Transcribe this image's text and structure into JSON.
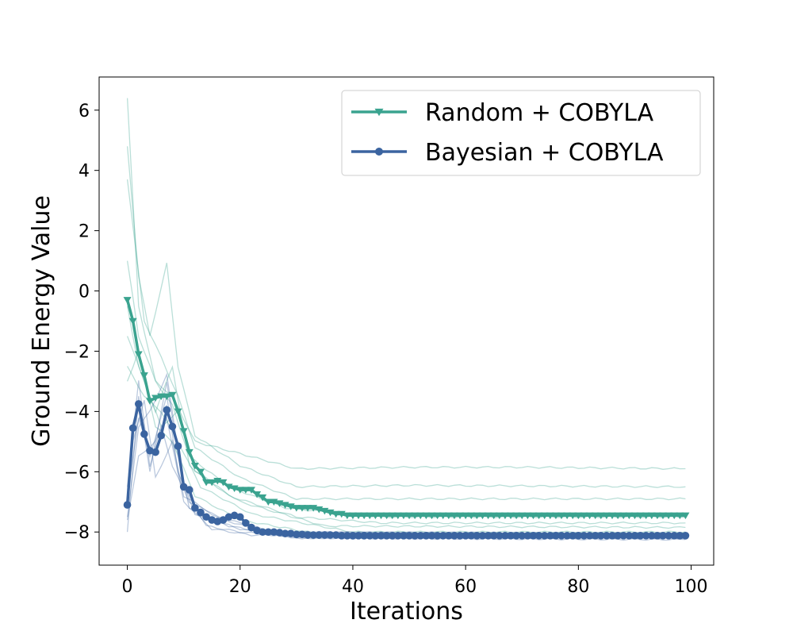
{
  "chart_data": {
    "type": "line",
    "title": "",
    "xlabel": "Iterations",
    "ylabel": "Ground Energy Value",
    "xlim": [
      -5,
      104
    ],
    "ylim": [
      -9.1,
      7.1
    ],
    "x_ticks": [
      0,
      20,
      40,
      60,
      80,
      100
    ],
    "y_ticks": [
      -8,
      -6,
      -4,
      -2,
      0,
      2,
      4,
      6
    ],
    "legend_position": "top-right",
    "grid": false,
    "series": [
      {
        "name": "Random + COBYLA",
        "color": "#3aa38f",
        "marker": "triangle-down",
        "x_start": 0,
        "values": [
          -0.3,
          -1.0,
          -2.1,
          -2.8,
          -3.65,
          -3.55,
          -3.5,
          -3.5,
          -3.45,
          -4.0,
          -4.65,
          -5.35,
          -5.8,
          -6.0,
          -6.35,
          -6.35,
          -6.3,
          -6.35,
          -6.5,
          -6.55,
          -6.6,
          -6.6,
          -6.6,
          -6.75,
          -6.85,
          -7.0,
          -7.0,
          -7.05,
          -7.1,
          -7.15,
          -7.2,
          -7.2,
          -7.2,
          -7.2,
          -7.25,
          -7.3,
          -7.35,
          -7.4,
          -7.4,
          -7.45,
          -7.45,
          -7.45,
          -7.45,
          -7.45,
          -7.45,
          -7.45,
          -7.45,
          -7.45,
          -7.45,
          -7.45,
          -7.45,
          -7.45,
          -7.45,
          -7.45,
          -7.45,
          -7.45,
          -7.45,
          -7.45,
          -7.45,
          -7.45,
          -7.45,
          -7.45,
          -7.45,
          -7.45,
          -7.45,
          -7.45,
          -7.45,
          -7.45,
          -7.45,
          -7.45,
          -7.45,
          -7.45,
          -7.45,
          -7.45,
          -7.45,
          -7.45,
          -7.45,
          -7.45,
          -7.45,
          -7.45,
          -7.45,
          -7.45,
          -7.45,
          -7.45,
          -7.45,
          -7.45,
          -7.45,
          -7.45,
          -7.45,
          -7.45,
          -7.45,
          -7.45,
          -7.45,
          -7.45,
          -7.45,
          -7.45,
          -7.45,
          -7.45,
          -7.45,
          -7.45
        ]
      },
      {
        "name": "Bayesian + COBYLA",
        "color": "#3b64a0",
        "marker": "circle",
        "x_start": 0,
        "values": [
          -7.1,
          -4.55,
          -3.75,
          -4.75,
          -5.3,
          -5.35,
          -4.8,
          -3.95,
          -4.5,
          -5.15,
          -6.5,
          -6.6,
          -7.2,
          -7.35,
          -7.5,
          -7.6,
          -7.65,
          -7.6,
          -7.5,
          -7.45,
          -7.5,
          -7.7,
          -7.85,
          -7.95,
          -8.0,
          -8.0,
          -8.0,
          -8.02,
          -8.05,
          -8.05,
          -8.08,
          -8.08,
          -8.1,
          -8.1,
          -8.1,
          -8.1,
          -8.1,
          -8.1,
          -8.12,
          -8.12,
          -8.12,
          -8.12,
          -8.12,
          -8.12,
          -8.12,
          -8.12,
          -8.12,
          -8.12,
          -8.12,
          -8.12,
          -8.12,
          -8.12,
          -8.12,
          -8.12,
          -8.12,
          -8.12,
          -8.12,
          -8.12,
          -8.12,
          -8.12,
          -8.12,
          -8.12,
          -8.12,
          -8.12,
          -8.12,
          -8.12,
          -8.12,
          -8.12,
          -8.12,
          -8.12,
          -8.12,
          -8.12,
          -8.12,
          -8.12,
          -8.12,
          -8.12,
          -8.12,
          -8.12,
          -8.12,
          -8.12,
          -8.12,
          -8.12,
          -8.12,
          -8.12,
          -8.12,
          -8.12,
          -8.12,
          -8.12,
          -8.12,
          -8.12,
          -8.12,
          -8.12,
          -8.12,
          -8.12,
          -8.12,
          -8.12,
          -8.12,
          -8.12,
          -8.12,
          -8.12
        ]
      }
    ],
    "individual_runs": [
      {
        "group": "Random + COBYLA",
        "color": "#3aa38f",
        "knots": [
          [
            0,
            6.4
          ],
          [
            2,
            -0.5
          ],
          [
            5,
            -3.0
          ],
          [
            8,
            -3.5
          ],
          [
            12,
            -5.0
          ],
          [
            20,
            -5.4
          ],
          [
            30,
            -5.9
          ],
          [
            50,
            -5.85
          ],
          [
            70,
            -5.85
          ],
          [
            99,
            -5.9
          ]
        ]
      },
      {
        "group": "Random + COBYLA",
        "color": "#3aa38f",
        "knots": [
          [
            0,
            4.8
          ],
          [
            2,
            0.5
          ],
          [
            4,
            -1.5
          ],
          [
            7,
            0.9
          ],
          [
            9,
            -2.5
          ],
          [
            12,
            -4.8
          ],
          [
            20,
            -5.8
          ],
          [
            30,
            -6.5
          ],
          [
            50,
            -6.45
          ],
          [
            99,
            -6.5
          ]
        ]
      },
      {
        "group": "Random + COBYLA",
        "color": "#3aa38f",
        "knots": [
          [
            0,
            3.7
          ],
          [
            3,
            -1.0
          ],
          [
            6,
            -2.2
          ],
          [
            9,
            -3.5
          ],
          [
            12,
            -5.2
          ],
          [
            20,
            -6.2
          ],
          [
            30,
            -6.9
          ],
          [
            60,
            -6.9
          ],
          [
            99,
            -6.9
          ]
        ]
      },
      {
        "group": "Random + COBYLA",
        "color": "#3aa38f",
        "knots": [
          [
            0,
            1.0
          ],
          [
            2,
            -1.5
          ],
          [
            5,
            -3.0
          ],
          [
            8,
            -3.8
          ],
          [
            11,
            -5.5
          ],
          [
            18,
            -6.5
          ],
          [
            28,
            -7.2
          ],
          [
            45,
            -7.5
          ],
          [
            99,
            -7.5
          ]
        ]
      },
      {
        "group": "Random + COBYLA",
        "color": "#3aa38f",
        "knots": [
          [
            0,
            -0.5
          ],
          [
            2,
            -2.5
          ],
          [
            5,
            -4.0
          ],
          [
            8,
            -2.5
          ],
          [
            11,
            -5.8
          ],
          [
            18,
            -6.8
          ],
          [
            30,
            -7.5
          ],
          [
            45,
            -7.7
          ],
          [
            99,
            -7.7
          ]
        ]
      },
      {
        "group": "Random + COBYLA",
        "color": "#3aa38f",
        "knots": [
          [
            0,
            -1.5
          ],
          [
            3,
            -3.0
          ],
          [
            6,
            -4.5
          ],
          [
            9,
            -4.0
          ],
          [
            12,
            -6.0
          ],
          [
            20,
            -7.0
          ],
          [
            35,
            -7.8
          ],
          [
            99,
            -7.85
          ]
        ]
      },
      {
        "group": "Random + COBYLA",
        "color": "#3aa38f",
        "knots": [
          [
            0,
            -2.5
          ],
          [
            3,
            -3.5
          ],
          [
            6,
            -4.0
          ],
          [
            9,
            -5.0
          ],
          [
            13,
            -6.5
          ],
          [
            22,
            -7.4
          ],
          [
            40,
            -8.0
          ],
          [
            99,
            -8.0
          ]
        ]
      },
      {
        "group": "Random + COBYLA",
        "color": "#3aa38f",
        "knots": [
          [
            0,
            -3.0
          ],
          [
            2,
            -2.0
          ],
          [
            5,
            -4.5
          ],
          [
            8,
            -5.0
          ],
          [
            12,
            -6.8
          ],
          [
            20,
            -7.6
          ],
          [
            35,
            -8.1
          ],
          [
            99,
            -8.1
          ]
        ]
      },
      {
        "group": "Bayesian + COBYLA",
        "color": "#3b64a0",
        "knots": [
          [
            0,
            -8.0
          ],
          [
            2,
            -3.5
          ],
          [
            4,
            -6.0
          ],
          [
            7,
            -3.0
          ],
          [
            9,
            -5.5
          ],
          [
            11,
            -7.2
          ],
          [
            18,
            -7.8
          ],
          [
            30,
            -8.2
          ],
          [
            99,
            -8.25
          ]
        ]
      },
      {
        "group": "Bayesian + COBYLA",
        "color": "#3b64a0",
        "knots": [
          [
            0,
            -7.5
          ],
          [
            2,
            -4.5
          ],
          [
            4,
            -4.0
          ],
          [
            7,
            -2.8
          ],
          [
            10,
            -6.5
          ],
          [
            14,
            -7.8
          ],
          [
            20,
            -8.0
          ],
          [
            30,
            -8.15
          ],
          [
            99,
            -8.2
          ]
        ]
      },
      {
        "group": "Bayesian + COBYLA",
        "color": "#3b64a0",
        "knots": [
          [
            0,
            -6.5
          ],
          [
            2,
            -3.0
          ],
          [
            4,
            -5.8
          ],
          [
            6,
            -4.5
          ],
          [
            8,
            -5.8
          ],
          [
            11,
            -7.0
          ],
          [
            17,
            -7.6
          ],
          [
            25,
            -8.0
          ],
          [
            99,
            -8.05
          ]
        ]
      },
      {
        "group": "Bayesian + COBYLA",
        "color": "#3b64a0",
        "knots": [
          [
            0,
            -7.2
          ],
          [
            1,
            -5.0
          ],
          [
            3,
            -3.6
          ],
          [
            5,
            -6.2
          ],
          [
            8,
            -5.0
          ],
          [
            10,
            -6.8
          ],
          [
            16,
            -7.5
          ],
          [
            26,
            -8.0
          ],
          [
            99,
            -8.1
          ]
        ]
      },
      {
        "group": "Bayesian + COBYLA",
        "color": "#3b64a0",
        "knots": [
          [
            0,
            -6.8
          ],
          [
            2,
            -4.2
          ],
          [
            4,
            -5.5
          ],
          [
            7,
            -3.5
          ],
          [
            9,
            -6.0
          ],
          [
            12,
            -7.4
          ],
          [
            20,
            -7.9
          ],
          [
            30,
            -8.2
          ],
          [
            99,
            -8.2
          ]
        ]
      },
      {
        "group": "Bayesian + COBYLA",
        "color": "#3b64a0",
        "knots": [
          [
            0,
            -7.6
          ],
          [
            2,
            -5.5
          ],
          [
            5,
            -5.0
          ],
          [
            7,
            -4.2
          ],
          [
            10,
            -7.0
          ],
          [
            15,
            -7.9
          ],
          [
            22,
            -8.1
          ],
          [
            99,
            -8.15
          ]
        ]
      }
    ]
  }
}
